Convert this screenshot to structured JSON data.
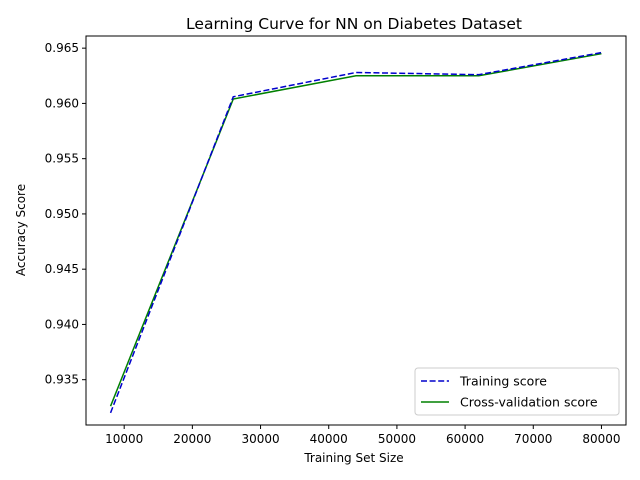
{
  "chart_data": {
    "type": "line",
    "title": "Learning Curve for NN on Diabetes Dataset",
    "xlabel": "Training Set Size",
    "ylabel": "Accuracy Score",
    "xlim": [
      4400,
      83600
    ],
    "ylim": [
      0.9309,
      0.9661
    ],
    "x_ticks": [
      10000,
      20000,
      30000,
      40000,
      50000,
      60000,
      70000,
      80000
    ],
    "y_ticks": [
      0.935,
      0.94,
      0.945,
      0.95,
      0.955,
      0.96,
      0.965
    ],
    "grid": false,
    "legend_position": "bottom-right",
    "series": [
      {
        "name": "Training score",
        "color": "#0000cc",
        "style": "dashed",
        "x": [
          8000,
          26000,
          44000,
          62000,
          80000
        ],
        "y": [
          0.932,
          0.9606,
          0.9628,
          0.9626,
          0.9646
        ]
      },
      {
        "name": "Cross-validation score",
        "color": "#008000",
        "style": "solid",
        "x": [
          8000,
          26000,
          44000,
          62000,
          80000
        ],
        "y": [
          0.9326,
          0.9604,
          0.9625,
          0.9625,
          0.9645
        ]
      }
    ]
  }
}
